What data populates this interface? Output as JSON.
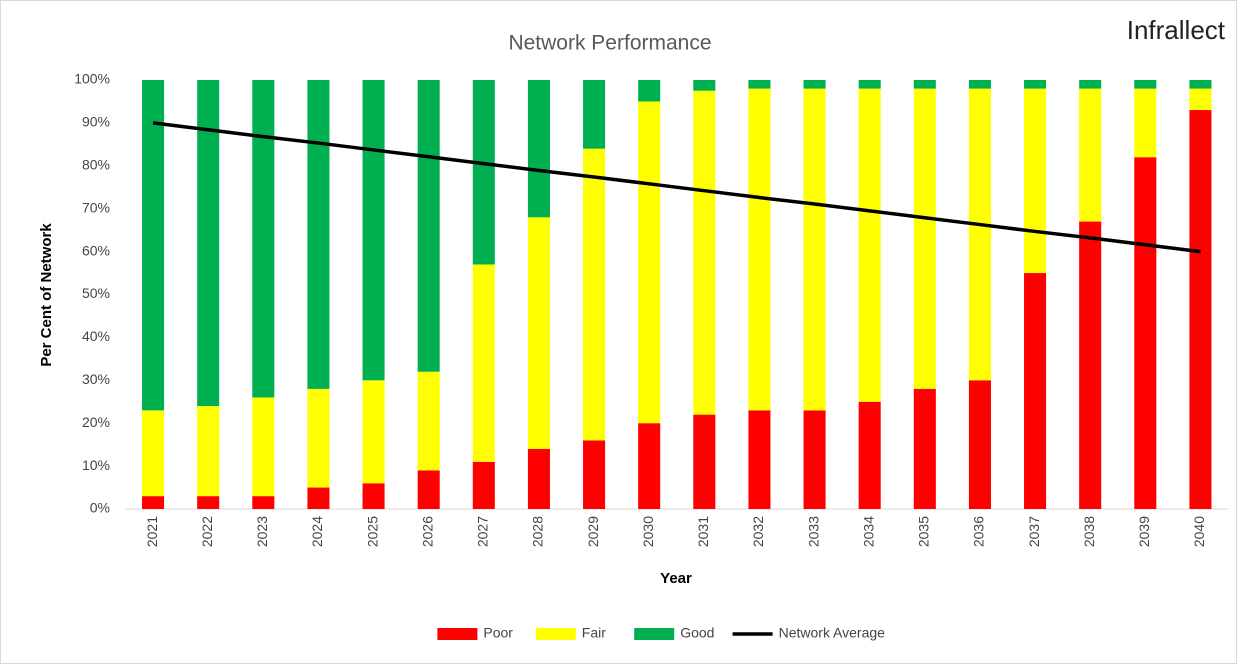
{
  "logo": "Infrallect",
  "chart_data": {
    "type": "bar",
    "stacked": true,
    "title": "Network Performance",
    "x_label": "Year",
    "y_label": "Per Cent of Network",
    "categories": [
      "2021",
      "2022",
      "2023",
      "2024",
      "2025",
      "2026",
      "2027",
      "2028",
      "2029",
      "2030",
      "2031",
      "2032",
      "2033",
      "2034",
      "2035",
      "2036",
      "2037",
      "2038",
      "2039",
      "2040"
    ],
    "series": [
      {
        "name": "Poor",
        "type": "bar",
        "color": "#ff0000",
        "values": [
          3,
          3,
          3,
          5,
          6,
          9,
          11,
          14,
          16,
          20,
          22,
          23,
          23,
          25,
          28,
          30,
          55,
          67,
          82,
          93
        ]
      },
      {
        "name": "Fair",
        "type": "bar",
        "color": "#ffff00",
        "values": [
          20,
          21,
          23,
          23,
          24,
          23,
          46,
          54,
          68,
          75,
          75.5,
          75,
          75,
          73,
          70,
          68,
          43,
          31,
          16,
          5
        ]
      },
      {
        "name": "Good",
        "type": "bar",
        "color": "#00b050",
        "values": [
          77,
          76,
          74,
          72,
          70,
          68,
          43,
          32,
          16,
          5,
          2.5,
          2,
          2,
          2,
          2,
          2,
          2,
          2,
          2,
          2
        ]
      },
      {
        "name": "Network Average",
        "type": "line",
        "color": "#000000",
        "values": [
          90,
          88.4,
          86.8,
          85.3,
          83.7,
          82.1,
          80.5,
          78.9,
          77.4,
          75.8,
          74.2,
          72.6,
          71.1,
          69.5,
          67.9,
          66.3,
          64.7,
          63.2,
          61.6,
          60
        ]
      }
    ],
    "ylim": [
      0,
      100
    ],
    "yticks": [
      {
        "value": 0,
        "label": "0%"
      },
      {
        "value": 10,
        "label": "10%"
      },
      {
        "value": 20,
        "label": "20%"
      },
      {
        "value": 30,
        "label": "30%"
      },
      {
        "value": 40,
        "label": "40%"
      },
      {
        "value": 50,
        "label": "50%"
      },
      {
        "value": 60,
        "label": "60%"
      },
      {
        "value": 70,
        "label": "70%"
      },
      {
        "value": 80,
        "label": "80%"
      },
      {
        "value": 90,
        "label": "90%"
      },
      {
        "value": 100,
        "label": "100%"
      }
    ],
    "grid": false,
    "legend": "bottom"
  }
}
